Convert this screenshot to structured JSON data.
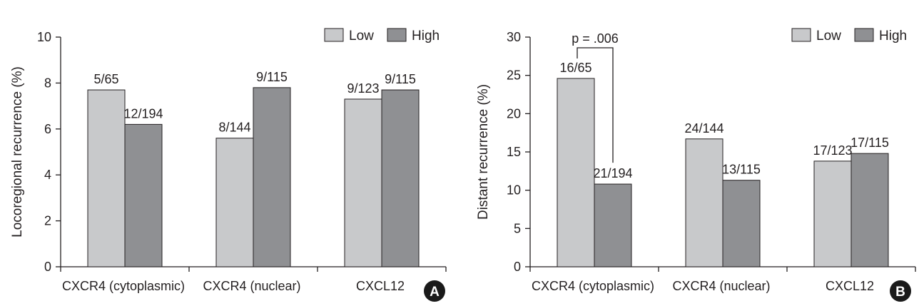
{
  "chart_data": [
    {
      "type": "bar",
      "panel": "A",
      "ylabel": "Locoregional recurrence (%)",
      "ylim": [
        0,
        10
      ],
      "yticks": [
        0,
        2,
        4,
        6,
        8,
        10
      ],
      "categories": [
        "CXCR4 (cytoplasmic)",
        "CXCR4 (nuclear)",
        "CXCL12"
      ],
      "series": [
        {
          "name": "Low",
          "color": "#c8c9cb",
          "values": [
            7.7,
            5.6,
            7.3
          ],
          "labels": [
            "5/65",
            "8/144",
            "9/123"
          ]
        },
        {
          "name": "High",
          "color": "#8f9093",
          "values": [
            6.2,
            7.8,
            7.7
          ],
          "labels": [
            "12/194",
            "9/115",
            "9/115"
          ]
        }
      ],
      "legend": [
        "Low",
        "High"
      ],
      "annotations": []
    },
    {
      "type": "bar",
      "panel": "B",
      "ylabel": "Distant recurrence (%)",
      "ylim": [
        0,
        30
      ],
      "yticks": [
        0,
        5,
        10,
        15,
        20,
        25,
        30
      ],
      "categories": [
        "CXCR4 (cytoplasmic)",
        "CXCR4 (nuclear)",
        "CXCL12"
      ],
      "series": [
        {
          "name": "Low",
          "color": "#c8c9cb",
          "values": [
            24.6,
            16.7,
            13.8
          ],
          "labels": [
            "16/65",
            "24/144",
            "17/123"
          ]
        },
        {
          "name": "High",
          "color": "#8f9093",
          "values": [
            10.8,
            11.3,
            14.8
          ],
          "labels": [
            "21/194",
            "13/115",
            "17/115"
          ]
        }
      ],
      "legend": [
        "Low",
        "High"
      ],
      "annotations": [
        {
          "text": "p = .006",
          "category": 0
        }
      ]
    }
  ],
  "badges": [
    "A",
    "B"
  ],
  "colors": {
    "low": "#c8c9cb",
    "high": "#8f9093",
    "ink": "#231f20"
  }
}
